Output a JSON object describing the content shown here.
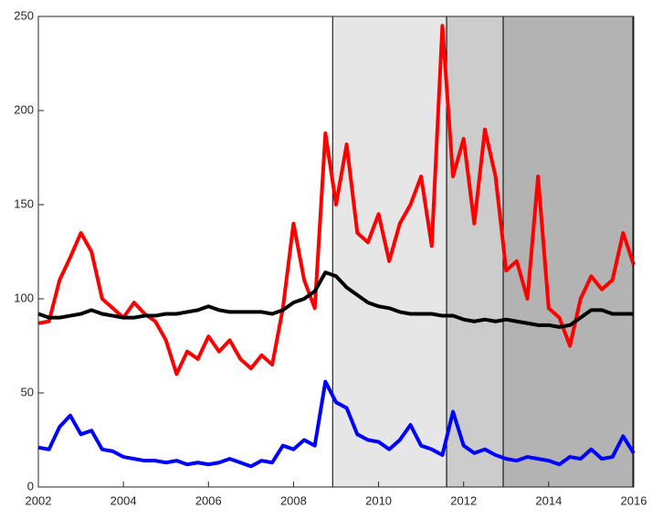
{
  "chart_data": {
    "type": "line",
    "x": [
      2002,
      2002.25,
      2002.5,
      2002.75,
      2003,
      2003.25,
      2003.5,
      2003.75,
      2004,
      2004.25,
      2004.5,
      2004.75,
      2005,
      2005.25,
      2005.5,
      2005.75,
      2006,
      2006.25,
      2006.5,
      2006.75,
      2007,
      2007.25,
      2007.5,
      2007.75,
      2008,
      2008.25,
      2008.5,
      2008.75,
      2009,
      2009.25,
      2009.5,
      2009.75,
      2010,
      2010.25,
      2010.5,
      2010.75,
      2011,
      2011.25,
      2011.5,
      2011.75,
      2012,
      2012.25,
      2012.5,
      2012.75,
      2013,
      2013.25,
      2013.5,
      2013.75,
      2014,
      2014.25,
      2014.5,
      2014.75,
      2015,
      2015.25,
      2015.5,
      2015.75,
      2016
    ],
    "series": [
      {
        "color": "#ff0000",
        "values": [
          87,
          88,
          110,
          122,
          135,
          125,
          100,
          95,
          90,
          98,
          92,
          88,
          78,
          60,
          72,
          68,
          80,
          72,
          78,
          68,
          63,
          70,
          65,
          95,
          140,
          110,
          95,
          188,
          150,
          182,
          135,
          130,
          145,
          120,
          140,
          150,
          165,
          128,
          245,
          165,
          185,
          140,
          190,
          165,
          115,
          120,
          100,
          165,
          95,
          90,
          75,
          100,
          112,
          105,
          110,
          135,
          118
        ]
      },
      {
        "color": "#000000",
        "values": [
          92,
          90,
          90,
          91,
          92,
          94,
          92,
          91,
          90,
          90,
          91,
          91,
          92,
          92,
          93,
          94,
          96,
          94,
          93,
          93,
          93,
          93,
          92,
          94,
          98,
          100,
          104,
          114,
          112,
          106,
          102,
          98,
          96,
          95,
          93,
          92,
          92,
          92,
          91,
          91,
          89,
          88,
          89,
          88,
          89,
          88,
          87,
          86,
          86,
          85,
          86,
          90,
          94,
          94,
          92,
          92,
          92
        ]
      },
      {
        "color": "#0000ff",
        "values": [
          21,
          20,
          32,
          38,
          28,
          30,
          20,
          19,
          16,
          15,
          14,
          14,
          13,
          14,
          12,
          13,
          12,
          13,
          15,
          13,
          11,
          14,
          13,
          22,
          20,
          25,
          22,
          56,
          45,
          42,
          28,
          25,
          24,
          20,
          25,
          33,
          22,
          20,
          17,
          40,
          22,
          18,
          20,
          17,
          15,
          14,
          16,
          15,
          14,
          12,
          16,
          15,
          20,
          15,
          16,
          27,
          18
        ]
      }
    ],
    "regions": [
      {
        "xlim": [
          2008.92,
          2011.6
        ],
        "color": "#e6e6e6"
      },
      {
        "xlim": [
          2011.6,
          2012.93
        ],
        "color": "#cccccc"
      },
      {
        "xlim": [
          2012.93,
          2015.98
        ],
        "color": "#b3b3b3"
      }
    ],
    "xlim": [
      2002,
      2016
    ],
    "xticks": [
      2002,
      2004,
      2006,
      2008,
      2010,
      2012,
      2014,
      2016
    ],
    "ylim": [
      0,
      250
    ],
    "yticks": [
      0,
      50,
      100,
      150,
      200,
      250
    ]
  }
}
